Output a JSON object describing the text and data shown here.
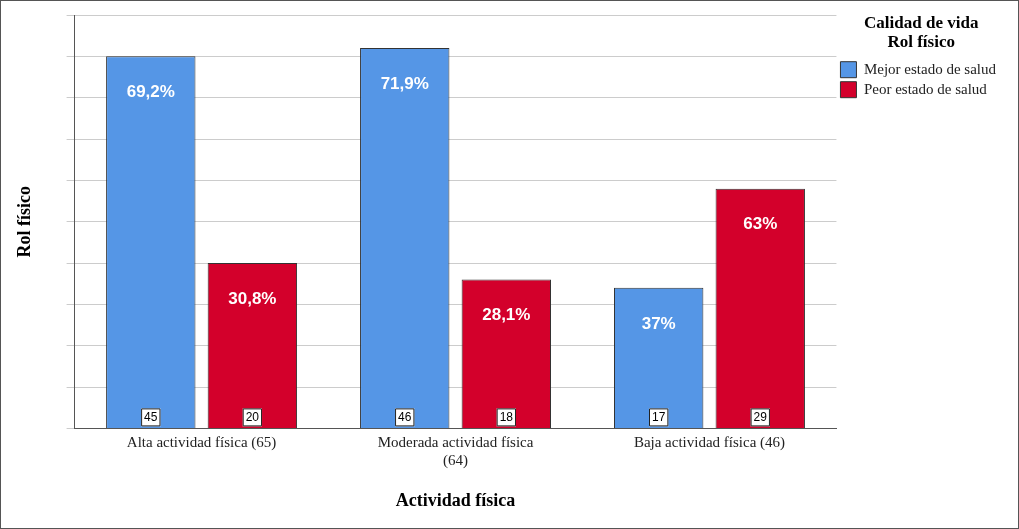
{
  "chart_data": {
    "type": "bar",
    "xlabel": "Actividad física",
    "ylabel": "Rol físico",
    "legend_title": "Calidad de vida\nRol físico",
    "categories": [
      "Alta actividad física (65)",
      "Moderada actividad física (64)",
      "Baja actividad física (46)"
    ],
    "series": [
      {
        "name": "Mejor estado de salud",
        "color": "#5596e6",
        "values": [
          45,
          46,
          17
        ]
      },
      {
        "name": "Peor estado de salud",
        "color": "#d3002b",
        "values": [
          20,
          18,
          29
        ]
      }
    ],
    "annotations": [
      "69,2%",
      "30,8%",
      "71,9%",
      "28,1%",
      "37%",
      "63%"
    ],
    "data_labels": true,
    "tick_labels": "x",
    "grid": "y",
    "legend": "top right"
  }
}
